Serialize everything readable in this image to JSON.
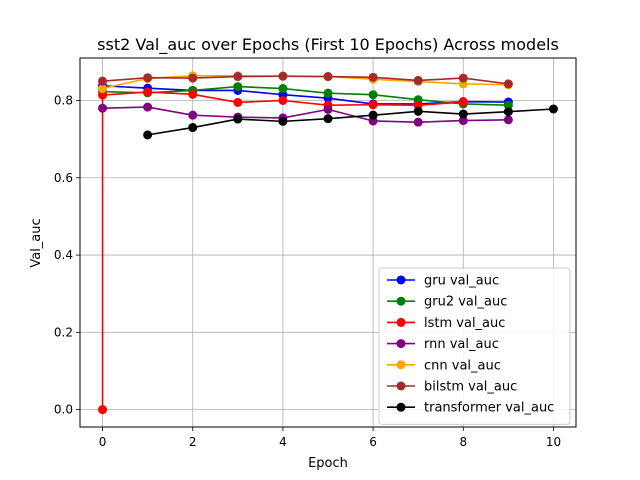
{
  "chart_data": {
    "type": "line",
    "title": "sst2 Val_auc over Epochs (First 10 Epochs) Across models",
    "xlabel": "Epoch",
    "ylabel": "Val_auc",
    "xlim": [
      -0.5,
      10.5
    ],
    "ylim": [
      -0.045,
      0.91
    ],
    "xticks": [
      0,
      2,
      4,
      6,
      8,
      10
    ],
    "yticks": [
      0.0,
      0.2,
      0.4,
      0.6,
      0.8
    ],
    "ytick_labels": [
      "0.0",
      "0.2",
      "0.4",
      "0.6",
      "0.8"
    ],
    "grid": true,
    "legend_position": "lower-right",
    "series": [
      {
        "name": "gru val_auc",
        "color": "#0000ff",
        "x": [
          0,
          1,
          2,
          3,
          4,
          5,
          6,
          7,
          8,
          9
        ],
        "y": [
          0.838,
          0.832,
          0.826,
          0.826,
          0.815,
          0.806,
          0.791,
          0.791,
          0.797,
          0.796
        ]
      },
      {
        "name": "gru2 val_auc",
        "color": "#008000",
        "x": [
          0,
          1,
          2,
          3,
          4,
          5,
          6,
          7,
          8,
          9
        ],
        "y": [
          0.823,
          0.82,
          0.826,
          0.836,
          0.831,
          0.819,
          0.815,
          0.802,
          0.791,
          0.788
        ]
      },
      {
        "name": "lstm val_auc",
        "color": "#ff0000",
        "x": [
          0,
          0,
          1,
          2,
          3,
          4,
          5,
          6,
          7,
          8
        ],
        "y": [
          0.0,
          0.814,
          0.822,
          0.816,
          0.795,
          0.8,
          0.788,
          0.789,
          0.788,
          0.796
        ]
      },
      {
        "name": "rnn val_auc",
        "color": "#800080",
        "x": [
          0,
          1,
          2,
          3,
          4,
          5,
          6,
          7,
          8,
          9
        ],
        "y": [
          0.78,
          0.783,
          0.762,
          0.757,
          0.755,
          0.777,
          0.747,
          0.744,
          0.748,
          0.75
        ]
      },
      {
        "name": "cnn val_auc",
        "color": "#ffa500",
        "x": [
          0,
          1,
          2,
          3,
          4,
          5,
          6,
          7,
          8,
          9
        ],
        "y": [
          0.831,
          0.857,
          0.864,
          0.864,
          0.863,
          0.862,
          0.855,
          0.849,
          0.843,
          0.841
        ]
      },
      {
        "name": "bilstm val_auc",
        "color": "#a52a2a",
        "x": [
          0,
          1,
          2,
          3,
          4,
          5,
          6,
          7,
          8,
          9
        ],
        "y": [
          0.85,
          0.859,
          0.858,
          0.862,
          0.863,
          0.862,
          0.86,
          0.852,
          0.858,
          0.843
        ]
      },
      {
        "name": "transformer val_auc",
        "color": "#000000",
        "x": [
          1,
          2,
          3,
          4,
          5,
          6,
          7,
          8,
          9,
          10
        ],
        "y": [
          0.711,
          0.73,
          0.752,
          0.746,
          0.753,
          0.762,
          0.772,
          0.765,
          0.771,
          0.778
        ]
      }
    ]
  }
}
